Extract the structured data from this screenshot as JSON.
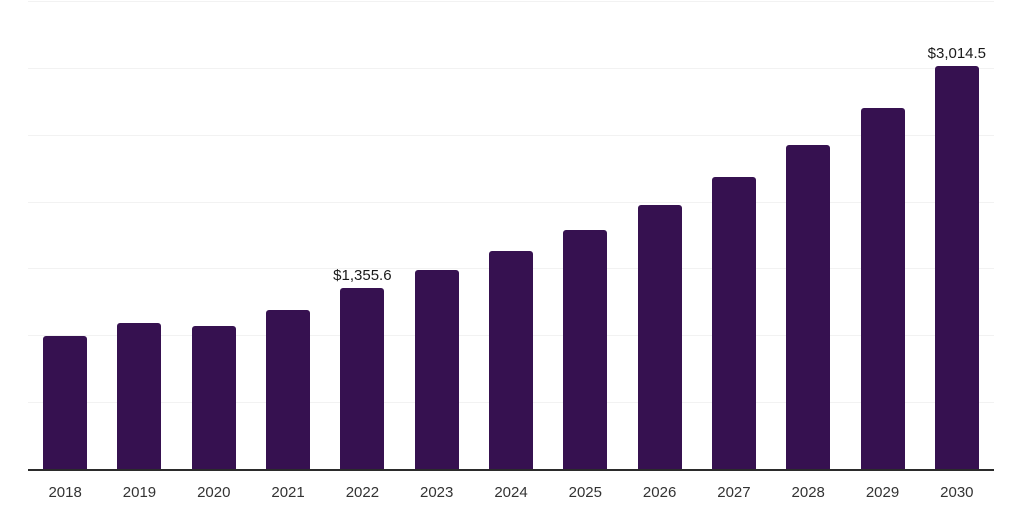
{
  "chart_data": {
    "type": "bar",
    "categories": [
      "2018",
      "2019",
      "2020",
      "2021",
      "2022",
      "2023",
      "2024",
      "2025",
      "2026",
      "2027",
      "2028",
      "2029",
      "2030"
    ],
    "values": [
      998,
      1092,
      1067,
      1192,
      1355.6,
      1489,
      1627,
      1790,
      1972,
      2181,
      2425,
      2700,
      3014.5
    ],
    "labels": [
      "",
      "",
      "",
      "",
      "$1,355.6",
      "",
      "",
      "",
      "",
      "",
      "",
      "",
      "$3,014.5"
    ],
    "ylim": [
      0,
      3500
    ],
    "gridline_step": 500,
    "grid": "horizontal",
    "legend": "none",
    "colors": {
      "bar": "#361150",
      "gridline": "#f2f2f2",
      "axis": "#2b2b2b",
      "tick_label": "#333333",
      "value_label": "#1a1a1a",
      "background": "#ffffff"
    }
  }
}
